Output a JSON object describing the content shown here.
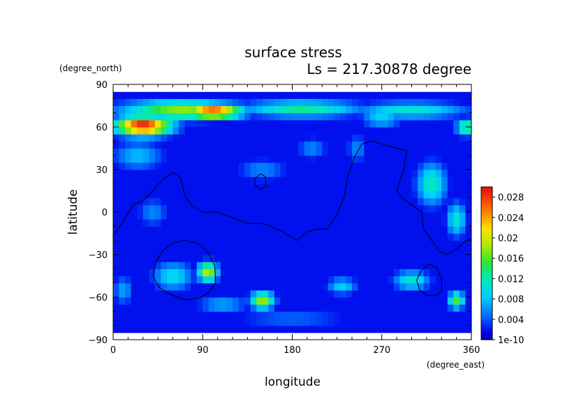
{
  "chart_data": {
    "type": "heatmap",
    "title": "surface stress",
    "subtitle": "Ls = 217.30878 degree",
    "xlabel": "longitude",
    "ylabel": "latitude",
    "x_unit": "(degree_east)",
    "y_unit": "(degree_north)",
    "xlim": [
      0,
      360
    ],
    "ylim": [
      -90,
      90
    ],
    "x_ticks": [
      0,
      90,
      180,
      270,
      360
    ],
    "y_ticks": [
      -90,
      -60,
      -30,
      0,
      30,
      60,
      90
    ],
    "colorbar": {
      "min": 0,
      "max": 0.03,
      "tick_values": [
        0,
        0.004,
        0.008,
        0.012,
        0.016,
        0.02,
        0.024,
        0.028
      ],
      "tick_labels": [
        "1e-10",
        "0.004",
        "0.008",
        "0.012",
        "0.016",
        "0.02",
        "0.024",
        "0.028"
      ]
    },
    "background_value": 0.002,
    "features": [
      {
        "lon": 30,
        "lat": 61,
        "value": 0.03,
        "sx": 28,
        "sy": 7
      },
      {
        "lon": 100,
        "lat": 71,
        "value": 0.028,
        "sx": 30,
        "sy": 5
      },
      {
        "lon": 70,
        "lat": 72,
        "value": 0.018,
        "sx": 60,
        "sy": 7
      },
      {
        "lon": 190,
        "lat": 73,
        "value": 0.013,
        "sx": 60,
        "sy": 6
      },
      {
        "lon": 300,
        "lat": 72,
        "value": 0.011,
        "sx": 55,
        "sy": 6
      },
      {
        "lon": 355,
        "lat": 60,
        "value": 0.015,
        "sx": 10,
        "sy": 6
      },
      {
        "lon": 270,
        "lat": 66,
        "value": 0.01,
        "sx": 20,
        "sy": 5
      },
      {
        "lon": 25,
        "lat": 40,
        "value": 0.008,
        "sx": 25,
        "sy": 10
      },
      {
        "lon": 320,
        "lat": 20,
        "value": 0.012,
        "sx": 15,
        "sy": 15
      },
      {
        "lon": 345,
        "lat": -5,
        "value": 0.011,
        "sx": 10,
        "sy": 12
      },
      {
        "lon": 95,
        "lat": -42,
        "value": 0.02,
        "sx": 10,
        "sy": 7
      },
      {
        "lon": 150,
        "lat": -62,
        "value": 0.019,
        "sx": 12,
        "sy": 6
      },
      {
        "lon": 345,
        "lat": -62,
        "value": 0.016,
        "sx": 8,
        "sy": 6
      },
      {
        "lon": 300,
        "lat": -48,
        "value": 0.011,
        "sx": 18,
        "sy": 7
      },
      {
        "lon": 60,
        "lat": -45,
        "value": 0.01,
        "sx": 20,
        "sy": 10
      },
      {
        "lon": 230,
        "lat": -52,
        "value": 0.009,
        "sx": 15,
        "sy": 6
      },
      {
        "lon": 110,
        "lat": -65,
        "value": 0.008,
        "sx": 25,
        "sy": 5
      },
      {
        "lon": 180,
        "lat": -75,
        "value": 0.005,
        "sx": 60,
        "sy": 6
      },
      {
        "lon": 10,
        "lat": -55,
        "value": 0.007,
        "sx": 10,
        "sy": 10
      },
      {
        "lon": 150,
        "lat": 30,
        "value": 0.006,
        "sx": 25,
        "sy": 8
      },
      {
        "lon": 200,
        "lat": 45,
        "value": 0.006,
        "sx": 15,
        "sy": 8
      },
      {
        "lon": 40,
        "lat": 0,
        "value": 0.006,
        "sx": 15,
        "sy": 10
      },
      {
        "lon": 245,
        "lat": 45,
        "value": 0.006,
        "sx": 10,
        "sy": 10
      }
    ],
    "contours": [
      [
        [
          0,
          -17
        ],
        [
          10,
          -7
        ],
        [
          20,
          5
        ],
        [
          30,
          8
        ],
        [
          40,
          15
        ],
        [
          50,
          23
        ],
        [
          60,
          28
        ],
        [
          68,
          24
        ],
        [
          72,
          12
        ],
        [
          78,
          5
        ],
        [
          90,
          0
        ],
        [
          105,
          0
        ],
        [
          120,
          -4
        ],
        [
          135,
          -8
        ],
        [
          150,
          -8
        ],
        [
          165,
          -12
        ],
        [
          175,
          -16
        ],
        [
          185,
          -20
        ],
        [
          195,
          -14
        ],
        [
          205,
          -12
        ],
        [
          215,
          -12
        ],
        [
          225,
          -2
        ],
        [
          232,
          10
        ],
        [
          236,
          26
        ],
        [
          242,
          38
        ],
        [
          250,
          48
        ],
        [
          260,
          50
        ],
        [
          270,
          48
        ],
        [
          285,
          45
        ],
        [
          295,
          43
        ],
        [
          292,
          30
        ],
        [
          285,
          15
        ],
        [
          290,
          10
        ],
        [
          300,
          5
        ],
        [
          310,
          0
        ],
        [
          312,
          -12
        ],
        [
          320,
          -20
        ],
        [
          328,
          -28
        ],
        [
          335,
          -30
        ],
        [
          345,
          -26
        ],
        [
          355,
          -20
        ],
        [
          360,
          -19
        ]
      ],
      [
        [
          142,
          23
        ],
        [
          148,
          27
        ],
        [
          153,
          25
        ],
        [
          154,
          18
        ],
        [
          148,
          16
        ],
        [
          143,
          19
        ],
        [
          142,
          23
        ]
      ],
      [
        [
          40,
          -45
        ],
        [
          43,
          -35
        ],
        [
          50,
          -27
        ],
        [
          60,
          -22
        ],
        [
          72,
          -20
        ],
        [
          85,
          -22
        ],
        [
          95,
          -28
        ],
        [
          102,
          -38
        ],
        [
          103,
          -50
        ],
        [
          96,
          -57
        ],
        [
          85,
          -61
        ],
        [
          72,
          -62
        ],
        [
          57,
          -58
        ],
        [
          46,
          -53
        ],
        [
          40,
          -45
        ]
      ],
      [
        [
          305,
          -48
        ],
        [
          310,
          -41
        ],
        [
          318,
          -37
        ],
        [
          325,
          -39
        ],
        [
          330,
          -47
        ],
        [
          330,
          -55
        ],
        [
          325,
          -59
        ],
        [
          316,
          -59
        ],
        [
          308,
          -55
        ],
        [
          305,
          -48
        ]
      ]
    ]
  }
}
